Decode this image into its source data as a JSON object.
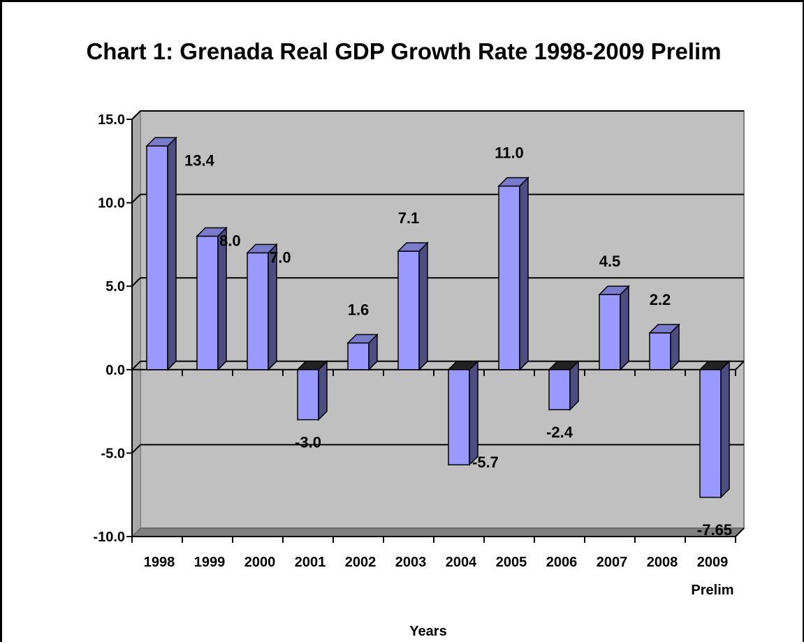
{
  "chart_data": {
    "type": "bar",
    "title": "Chart 1: Grenada Real GDP Growth Rate 1998-2009 Prelim",
    "xlabel": "Years",
    "ylabel": "",
    "categories": [
      {
        "label": "1998",
        "sub": ""
      },
      {
        "label": "1999",
        "sub": ""
      },
      {
        "label": "2000",
        "sub": ""
      },
      {
        "label": "2001",
        "sub": ""
      },
      {
        "label": "2002",
        "sub": ""
      },
      {
        "label": "2003",
        "sub": ""
      },
      {
        "label": "2004",
        "sub": ""
      },
      {
        "label": "2005",
        "sub": ""
      },
      {
        "label": "2006",
        "sub": ""
      },
      {
        "label": "2007",
        "sub": ""
      },
      {
        "label": "2008",
        "sub": ""
      },
      {
        "label": "2009",
        "sub": "Prelim"
      }
    ],
    "values": [
      13.4,
      8.0,
      7.0,
      -3.0,
      1.6,
      7.1,
      -5.7,
      11.0,
      -2.4,
      4.5,
      2.2,
      -7.65
    ],
    "data_labels": [
      "13.4",
      "8.0",
      "7.0",
      "-3.0",
      "1.6",
      "7.1",
      "-5.7",
      "11.0",
      "-2.4",
      "4.5",
      "2.2",
      "-7.65"
    ],
    "ylim": [
      -10,
      15
    ],
    "yticks": [
      {
        "value": 15,
        "label": "15.0"
      },
      {
        "value": 10,
        "label": "10.0"
      },
      {
        "value": 5,
        "label": "5.0"
      },
      {
        "value": 0,
        "label": "0.0"
      },
      {
        "value": -5,
        "label": "-5.0"
      },
      {
        "value": -10,
        "label": "-10.0"
      }
    ],
    "grid": true,
    "legend": "none",
    "colors": {
      "bar_front": "#9999ff",
      "bar_side": "#4d4d80",
      "bar_top": "#7b7bcc",
      "plot_back": "#c0c0c0",
      "plot_floor": "#7f7f7f"
    }
  }
}
